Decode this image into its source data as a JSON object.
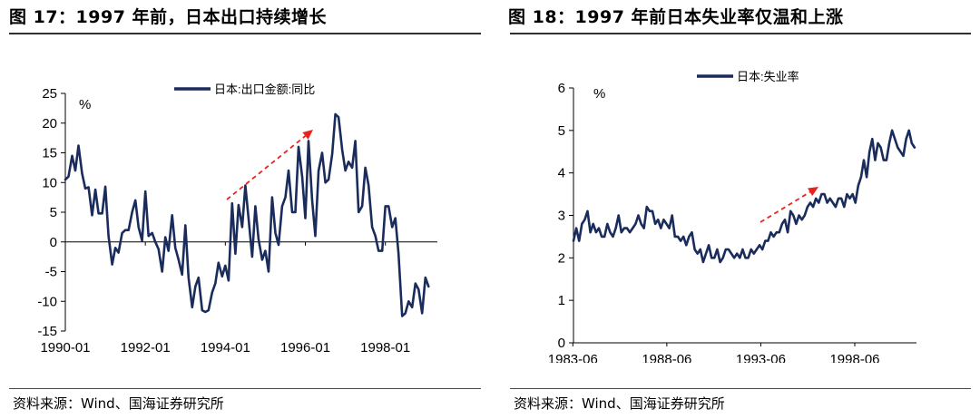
{
  "figures": [
    {
      "title": "图 17：1997 年前，日本出口持续增长",
      "source": "资料来源：Wind、国海证券研究所",
      "chart_data": {
        "type": "line",
        "ylabel": "%",
        "ylim": [
          -15,
          25
        ],
        "yticks": [
          25,
          20,
          15,
          10,
          5,
          0,
          -5,
          -10,
          -15
        ],
        "xlabels": [
          "1990-01",
          "1992-01",
          "1994-01",
          "1996-01",
          "1998-01"
        ],
        "xrange": [
          1990.0,
          1999.3
        ],
        "legend": "日本:出口金额:同比",
        "series_color": "#1a2c5b",
        "annotation": "red dashed upward arrow from 1994-01 to 1996-06",
        "annotation_color": "#e8231d",
        "series": [
          {
            "name": "日本:出口金额:同比",
            "x": [
              1990.0,
              1990.08,
              1990.17,
              1990.25,
              1990.33,
              1990.42,
              1990.5,
              1990.58,
              1990.67,
              1990.75,
              1990.83,
              1990.92,
              1991.0,
              1991.08,
              1991.17,
              1991.25,
              1991.33,
              1991.42,
              1991.5,
              1991.58,
              1991.67,
              1991.75,
              1991.83,
              1991.92,
              1992.0,
              1992.08,
              1992.17,
              1992.25,
              1992.33,
              1992.42,
              1992.5,
              1992.58,
              1992.67,
              1992.75,
              1992.83,
              1992.92,
              1993.0,
              1993.08,
              1993.17,
              1993.25,
              1993.33,
              1993.42,
              1993.5,
              1993.58,
              1993.67,
              1993.75,
              1993.83,
              1993.92,
              1994.0,
              1994.08,
              1994.17,
              1994.25,
              1994.33,
              1994.42,
              1994.5,
              1994.58,
              1994.67,
              1994.75,
              1994.83,
              1994.92,
              1995.0,
              1995.08,
              1995.17,
              1995.25,
              1995.33,
              1995.42,
              1995.5,
              1995.58,
              1995.67,
              1995.75,
              1995.83,
              1995.92,
              1996.0,
              1996.08,
              1996.17,
              1996.25,
              1996.33,
              1996.42,
              1996.5,
              1996.58,
              1996.67,
              1996.75,
              1996.83,
              1996.92,
              1997.0,
              1997.08,
              1997.17,
              1997.25,
              1997.33,
              1997.42,
              1997.5,
              1997.58,
              1997.67,
              1997.75,
              1997.83,
              1997.92,
              1998.0,
              1998.08,
              1998.17,
              1998.25,
              1998.33,
              1998.42,
              1998.5,
              1998.58,
              1998.67,
              1998.75,
              1998.83,
              1998.92,
              1999.0,
              1999.08
            ],
            "y": [
              10.5,
              11.0,
              14.5,
              12.0,
              16.2,
              11.5,
              9.0,
              9.2,
              4.5,
              8.8,
              4.8,
              4.8,
              9.3,
              1.0,
              -3.8,
              -1.0,
              -1.8,
              1.5,
              2.0,
              2.0,
              5.0,
              7.0,
              2.5,
              0.2,
              8.5,
              1.0,
              1.5,
              0.0,
              -1.2,
              -5.0,
              0.8,
              -1.5,
              4.5,
              -1.0,
              -3.0,
              -5.5,
              2.8,
              -6.0,
              -11.0,
              -7.5,
              -6.0,
              -11.5,
              -11.8,
              -11.5,
              -8.5,
              -7.0,
              -3.5,
              -5.8,
              -4.0,
              -6.5,
              6.5,
              -2.0,
              6.2,
              2.5,
              9.5,
              4.0,
              -2.5,
              6.0,
              0.5,
              -3.0,
              -1.5,
              -5.0,
              7.5,
              1.5,
              -0.5,
              6.0,
              7.5,
              12.0,
              5.0,
              5.0,
              16.0,
              11.0,
              4.0,
              17.0,
              7.0,
              1.0,
              12.0,
              15.0,
              10.0,
              10.5,
              14.8,
              21.5,
              21.0,
              15.5,
              12.0,
              13.5,
              12.5,
              17.0,
              5.0,
              6.0,
              12.5,
              9.5,
              2.5,
              1.0,
              -1.5,
              -1.5,
              6.0,
              6.0,
              2.5,
              4.0,
              -2.0,
              -12.5,
              -12.0,
              -10.0,
              -11.0,
              -7.0,
              -8.0,
              -12.0,
              -6.0,
              -7.5
            ]
          }
        ]
      }
    },
    {
      "title": "图 18：1997 年前日本失业率仅温和上涨",
      "source": "资料来源：Wind、国海证券研究所",
      "chart_data": {
        "type": "line",
        "ylabel": "%",
        "ylim": [
          0,
          6
        ],
        "yticks": [
          6,
          5,
          4,
          3,
          2,
          1,
          0
        ],
        "xlabels": [
          "1983-06",
          "1988-06",
          "1993-06",
          "1998-06"
        ],
        "xrange": [
          1983.45,
          2001.7
        ],
        "legend": "日本:失业率",
        "series_color": "#1a2c5b",
        "annotation": "red dashed upward arrow from 1993-06 to 1996-06",
        "annotation_color": "#e8231d",
        "series": [
          {
            "name": "日本:失业率",
            "x": [
              1983.45,
              1983.6,
              1983.75,
              1983.9,
              1984.05,
              1984.2,
              1984.35,
              1984.5,
              1984.65,
              1984.8,
              1984.95,
              1985.1,
              1985.25,
              1985.4,
              1985.55,
              1985.7,
              1985.85,
              1986.0,
              1986.15,
              1986.3,
              1986.45,
              1986.6,
              1986.75,
              1986.9,
              1987.05,
              1987.2,
              1987.35,
              1987.5,
              1987.65,
              1987.8,
              1987.95,
              1988.1,
              1988.25,
              1988.4,
              1988.55,
              1988.7,
              1988.85,
              1989.0,
              1989.15,
              1989.3,
              1989.45,
              1989.6,
              1989.75,
              1989.9,
              1990.05,
              1990.2,
              1990.35,
              1990.5,
              1990.65,
              1990.8,
              1990.95,
              1991.1,
              1991.25,
              1991.4,
              1991.55,
              1991.7,
              1991.85,
              1992.0,
              1992.15,
              1992.3,
              1992.45,
              1992.6,
              1992.75,
              1992.9,
              1993.05,
              1993.2,
              1993.35,
              1993.5,
              1993.65,
              1993.8,
              1993.95,
              1994.1,
              1994.25,
              1994.4,
              1994.55,
              1994.7,
              1994.85,
              1995.0,
              1995.15,
              1995.3,
              1995.45,
              1995.6,
              1995.75,
              1995.9,
              1996.05,
              1996.2,
              1996.35,
              1996.5,
              1996.65,
              1996.8,
              1996.95,
              1997.1,
              1997.25,
              1997.4,
              1997.55,
              1997.7,
              1997.85,
              1998.0,
              1998.15,
              1998.3,
              1998.45,
              1998.6,
              1998.75,
              1998.9,
              1999.05,
              1999.2,
              1999.35,
              1999.5,
              1999.65,
              1999.8,
              1999.95,
              2000.1,
              2000.25,
              2000.4,
              2000.55,
              2000.7,
              2000.85,
              2001.0,
              2001.15,
              2001.3,
              2001.45,
              2001.6
            ],
            "y": [
              2.4,
              2.7,
              2.4,
              2.8,
              2.9,
              3.1,
              2.6,
              2.8,
              2.6,
              2.7,
              2.5,
              2.5,
              2.8,
              2.6,
              2.5,
              2.7,
              3.0,
              2.6,
              2.7,
              2.7,
              2.6,
              2.7,
              2.8,
              3.0,
              2.8,
              2.7,
              3.2,
              3.1,
              3.1,
              2.8,
              2.9,
              2.7,
              2.9,
              2.8,
              2.7,
              3.0,
              2.5,
              2.5,
              2.4,
              2.5,
              2.3,
              2.5,
              2.6,
              2.2,
              2.1,
              2.2,
              1.9,
              2.1,
              2.3,
              2.0,
              2.0,
              2.2,
              1.9,
              2.0,
              2.2,
              2.2,
              2.1,
              2.0,
              2.1,
              2.0,
              2.2,
              2.0,
              2.0,
              2.2,
              2.1,
              2.2,
              2.3,
              2.2,
              2.4,
              2.4,
              2.6,
              2.5,
              2.6,
              2.6,
              2.8,
              2.9,
              2.6,
              3.1,
              3.0,
              2.8,
              3.0,
              2.9,
              3.0,
              3.2,
              3.3,
              3.2,
              3.4,
              3.3,
              3.5,
              3.5,
              3.3,
              3.4,
              3.3,
              3.2,
              3.4,
              3.4,
              3.2,
              3.5,
              3.4,
              3.5,
              3.3,
              3.7,
              3.9,
              4.3,
              3.9,
              4.5,
              4.8,
              4.3,
              4.7,
              4.6,
              4.3,
              4.3,
              4.7,
              5.0,
              4.8,
              4.6,
              4.5,
              4.4,
              4.8,
              5.0,
              4.7,
              4.6
            ]
          }
        ]
      }
    }
  ]
}
